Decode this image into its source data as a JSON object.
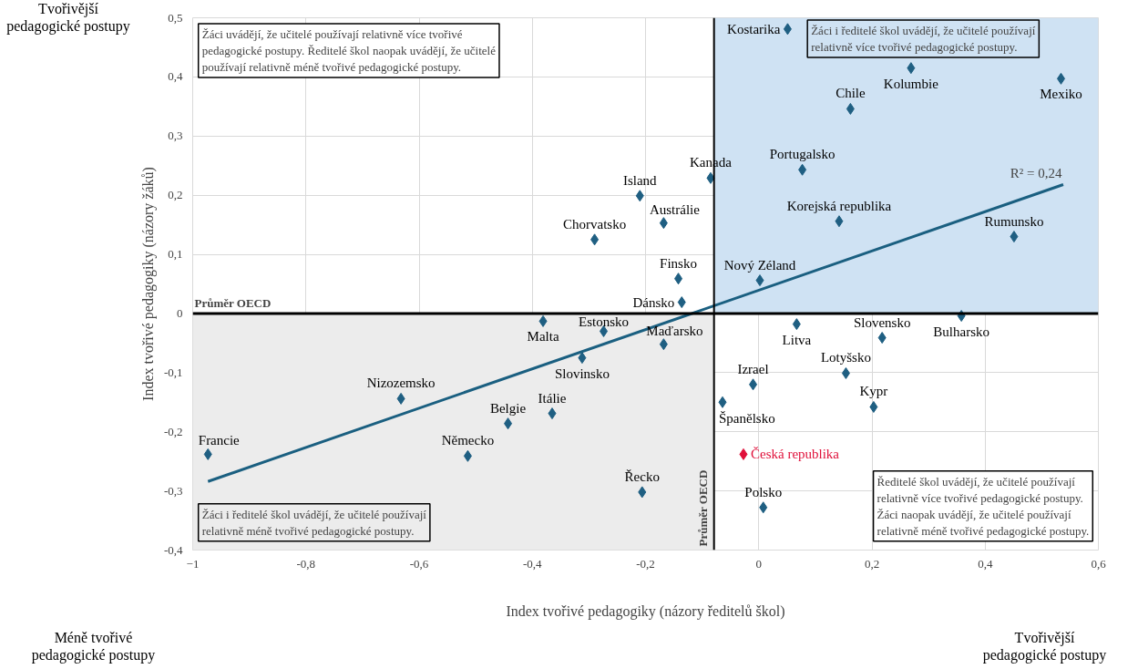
{
  "chart_data": {
    "type": "scatter",
    "xlabel": "Index tvořivé pedagogiky (názory ředitelů škol)",
    "ylabel": "Index tvořivé pedagogiky (názory žáků)",
    "xlim": [
      -1,
      0.6
    ],
    "ylim": [
      -0.4,
      0.5
    ],
    "xticks": [
      -1,
      {
        "value": -0.8,
        "label": "-0,8"
      },
      {
        "value": -0.6,
        "label": "-0,6"
      },
      {
        "value": -0.4,
        "label": "-0,4"
      },
      {
        "value": -0.2,
        "label": "-0,2"
      },
      0,
      {
        "value": 0.2,
        "label": "0,2"
      },
      {
        "value": 0.4,
        "label": "0,4"
      },
      {
        "value": 0.6,
        "label": "0,6"
      }
    ],
    "yticks": [
      {
        "value": -0.4,
        "label": "-0,4"
      },
      {
        "value": -0.3,
        "label": "-0,3"
      },
      {
        "value": -0.2,
        "label": "-0,2"
      },
      {
        "value": -0.1,
        "label": "-0,1"
      },
      0,
      {
        "value": 0.1,
        "label": "0,1"
      },
      {
        "value": 0.2,
        "label": "0,2"
      },
      {
        "value": 0.3,
        "label": "0,3"
      },
      {
        "value": 0.4,
        "label": "0,4"
      },
      {
        "value": 0.5,
        "label": "0,5"
      }
    ],
    "grid": true,
    "legend": false,
    "marker": "diamond",
    "bands": [
      {
        "axis": "x",
        "from": -0.079,
        "to": 0.6,
        "color": "#cfe2f3"
      },
      {
        "axis": "x",
        "from": -1,
        "to": -0.079,
        "color": "#ececec"
      }
    ],
    "ref_lines": [
      {
        "axis": "y",
        "value": 0,
        "label": "Průměr OECD",
        "color": "#000000"
      },
      {
        "axis": "x",
        "value": -0.079,
        "label": "Průměr OECD",
        "color": "#000000"
      }
    ],
    "series": [
      {
        "name": "Kostarika",
        "color": "#1f5f82",
        "x": [
          0.051
        ],
        "values": [
          0.481
        ]
      },
      {
        "name": "Kolumbie",
        "color": "#1f5f82",
        "x": [
          0.269
        ],
        "values": [
          0.415
        ]
      },
      {
        "name": "Mexiko",
        "color": "#1f5f82",
        "x": [
          0.534
        ],
        "values": [
          0.397
        ]
      },
      {
        "name": "Chile",
        "color": "#1f5f82",
        "x": [
          0.162
        ],
        "values": [
          0.346
        ]
      },
      {
        "name": "Portugalsko",
        "color": "#1f5f82",
        "x": [
          0.077
        ],
        "values": [
          0.243
        ]
      },
      {
        "name": "Kanada",
        "color": "#1f5f82",
        "x": [
          -0.085
        ],
        "values": [
          0.229
        ]
      },
      {
        "name": "Island",
        "color": "#1f5f82",
        "x": [
          -0.21
        ],
        "values": [
          0.199
        ]
      },
      {
        "name": "Austrálie",
        "color": "#1f5f82",
        "x": [
          -0.168
        ],
        "values": [
          0.153
        ]
      },
      {
        "name": "Korejská republika",
        "color": "#1f5f82",
        "x": [
          0.142
        ],
        "values": [
          0.156
        ]
      },
      {
        "name": "Rumunsko",
        "color": "#1f5f82",
        "x": [
          0.451
        ],
        "values": [
          0.13
        ]
      },
      {
        "name": "Chorvatsko",
        "color": "#1f5f82",
        "x": [
          -0.29
        ],
        "values": [
          0.125
        ]
      },
      {
        "name": "Finsko",
        "color": "#1f5f82",
        "x": [
          -0.142
        ],
        "values": [
          0.059
        ]
      },
      {
        "name": "Nový Zéland",
        "color": "#1f5f82",
        "x": [
          0.002
        ],
        "values": [
          0.056
        ]
      },
      {
        "name": "Dánsko",
        "color": "#1f5f82",
        "x": [
          -0.136
        ],
        "values": [
          0.019
        ]
      },
      {
        "name": "Malta",
        "color": "#1f5f82",
        "x": [
          -0.381
        ],
        "values": [
          -0.013
        ]
      },
      {
        "name": "Estonsko",
        "color": "#1f5f82",
        "x": [
          -0.274
        ],
        "values": [
          -0.03
        ]
      },
      {
        "name": "Slovinsko",
        "color": "#1f5f82",
        "x": [
          -0.312
        ],
        "values": [
          -0.075
        ]
      },
      {
        "name": "Maďarsko",
        "color": "#1f5f82",
        "x": [
          -0.168
        ],
        "values": [
          -0.052
        ]
      },
      {
        "name": "Litva",
        "color": "#1f5f82",
        "x": [
          0.067
        ],
        "values": [
          -0.018
        ]
      },
      {
        "name": "Bulharsko",
        "color": "#1f5f82",
        "x": [
          0.358
        ],
        "values": [
          -0.004
        ]
      },
      {
        "name": "Slovensko",
        "color": "#1f5f82",
        "x": [
          0.218
        ],
        "values": [
          -0.041
        ]
      },
      {
        "name": "Lotyšsko",
        "color": "#1f5f82",
        "x": [
          0.154
        ],
        "values": [
          -0.101
        ]
      },
      {
        "name": "Izrael",
        "color": "#1f5f82",
        "x": [
          -0.01
        ],
        "values": [
          -0.12
        ]
      },
      {
        "name": "Kypr",
        "color": "#1f5f82",
        "x": [
          0.203
        ],
        "values": [
          -0.158
        ]
      },
      {
        "name": "Španělsko",
        "color": "#1f5f82",
        "x": [
          -0.064
        ],
        "values": [
          -0.15
        ]
      },
      {
        "name": "Česká republika",
        "color": "#e0103a",
        "x": [
          -0.027
        ],
        "values": [
          -0.238
        ]
      },
      {
        "name": "Polsko",
        "color": "#1f5f82",
        "x": [
          0.008
        ],
        "values": [
          -0.328
        ]
      },
      {
        "name": "Řecko",
        "color": "#1f5f82",
        "x": [
          -0.206
        ],
        "values": [
          -0.302
        ]
      },
      {
        "name": "Nizozemsko",
        "color": "#1f5f82",
        "x": [
          -0.632
        ],
        "values": [
          -0.144
        ]
      },
      {
        "name": "Itálie",
        "color": "#1f5f82",
        "x": [
          -0.365
        ],
        "values": [
          -0.169
        ]
      },
      {
        "name": "Belgie",
        "color": "#1f5f82",
        "x": [
          -0.443
        ],
        "values": [
          -0.186
        ]
      },
      {
        "name": "Německo",
        "color": "#1f5f82",
        "x": [
          -0.514
        ],
        "values": [
          -0.241
        ]
      },
      {
        "name": "Francie",
        "color": "#1f5f82",
        "x": [
          -0.973
        ],
        "values": [
          -0.238
        ]
      },
      {
        "type": "line",
        "marker": "none",
        "color": "#1a5f80",
        "x": [
          -0.973,
          0.538
        ],
        "values": [
          -0.284,
          0.218
        ]
      }
    ],
    "annotations": [
      "R² = 0,24",
      "Žáci uvádějí, že učitelé používají relativně více tvořivé\npedagogické postupy. Ředitelé škol naopak uvádějí, že učitelé\npoužívají relativně méně tvořivé pedagogické postupy.",
      "Žáci i ředitelé škol uvádějí, že učitelé používají\nrelativně více tvořivé pedagogické postupy.",
      "Žáci i ředitelé škol uvádějí, že učitelé používají\nrelativně méně tvořivé pedagogické postupy.",
      "Ředitelé škol uvádějí, že učitelé používají\nrelativně více tvořivé pedagogické postupy.\nŽáci naopak uvádějí, že učitelé používají\nrelativně méně tvořivé pedagogické postupy.",
      "Tvořivější\npedagogické postupy",
      "Méně tvořivé\npedagogické postupy",
      "Tvořivější\npedagogické postupy"
    ]
  }
}
